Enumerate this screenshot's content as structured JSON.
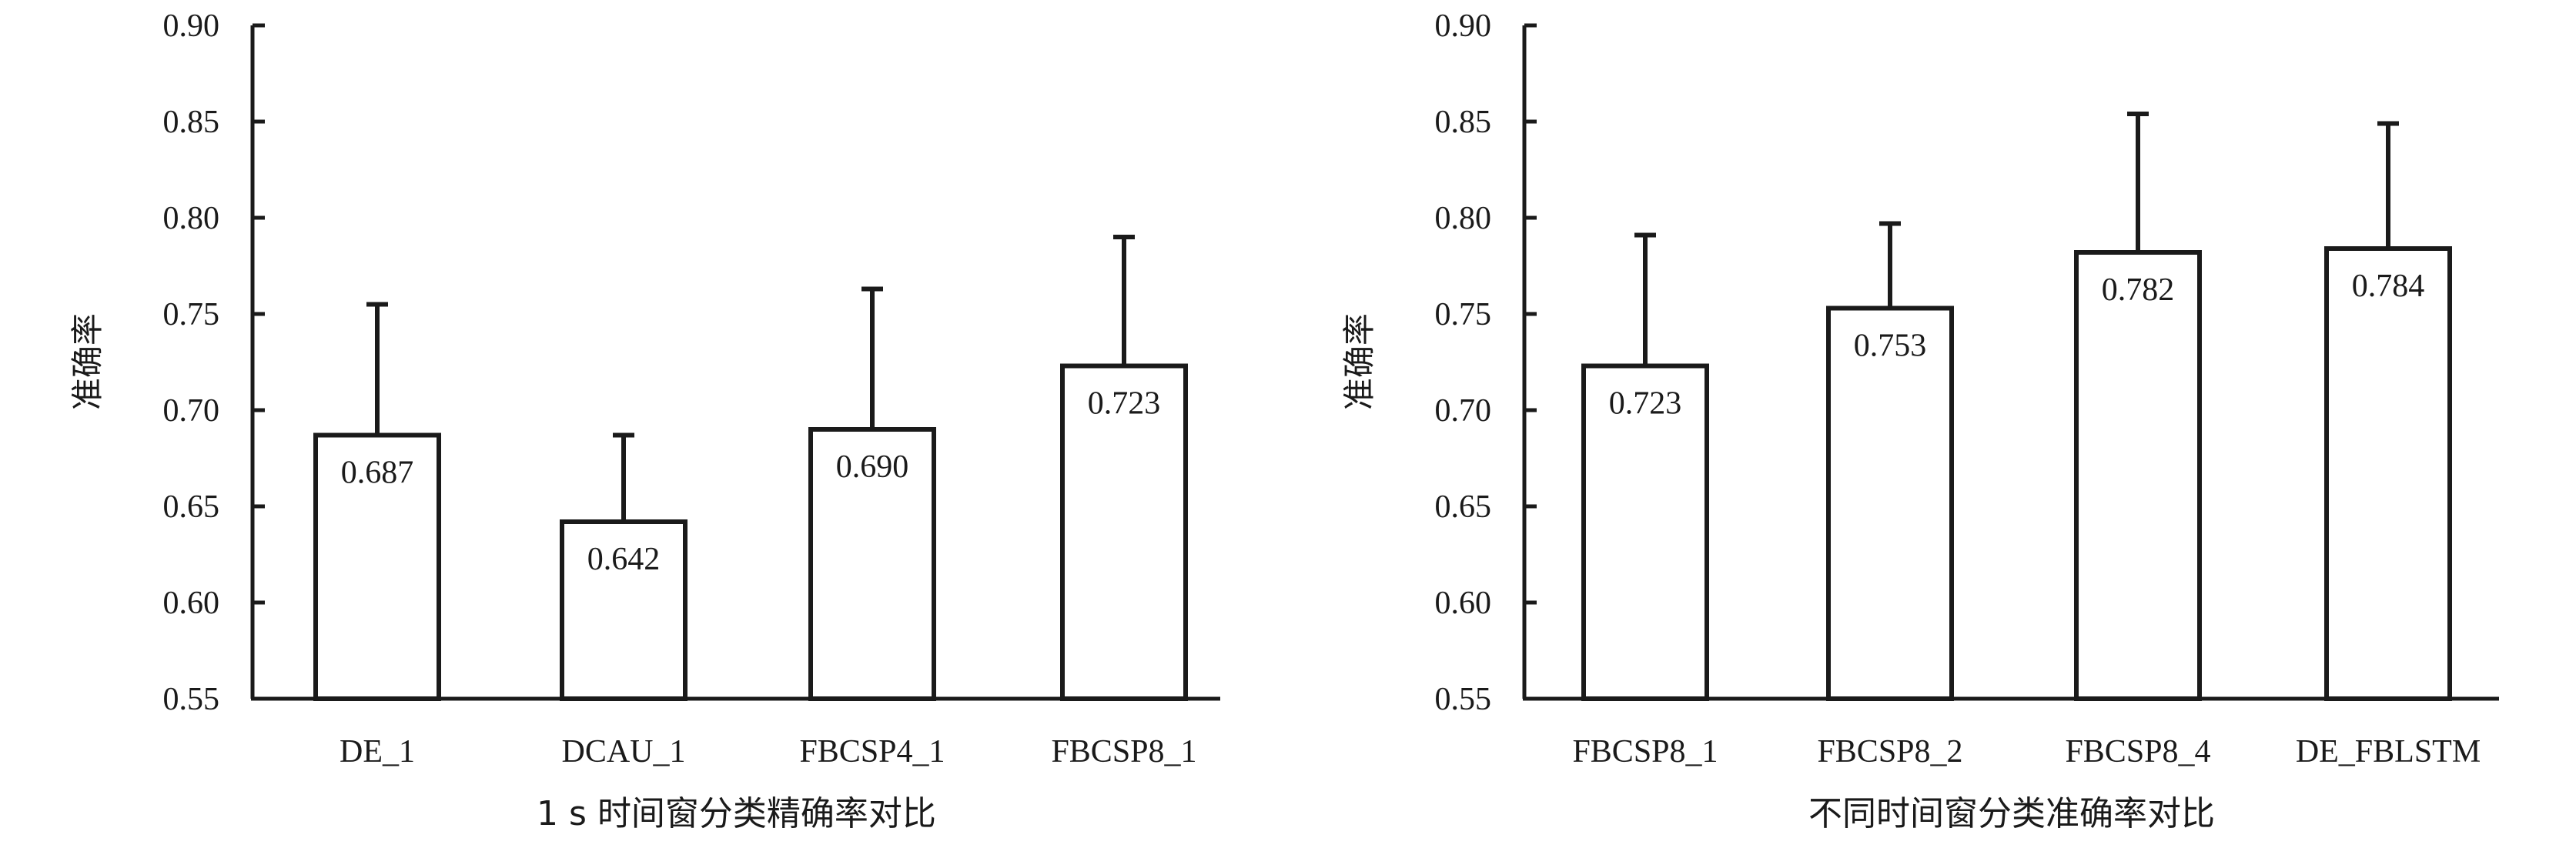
{
  "colors": {
    "ink": "#1a1a1a",
    "bar_fill": "#ffffff"
  },
  "chart_data": [
    {
      "type": "bar",
      "title": "",
      "xlabel": "1 s 时间窗分类精确率对比",
      "ylabel": "准确率",
      "ylim": [
        0.55,
        0.9
      ],
      "yticks": [
        "0.55",
        "0.60",
        "0.65",
        "0.70",
        "0.75",
        "0.80",
        "0.85",
        "0.90"
      ],
      "categories": [
        "DE_1",
        "DCAU_1",
        "FBCSP4_1",
        "FBCSP8_1"
      ],
      "values": [
        0.687,
        0.642,
        0.69,
        0.723
      ],
      "error_top": [
        0.755,
        0.687,
        0.763,
        0.79
      ],
      "value_labels": [
        "0.687",
        "0.642",
        "0.690",
        "0.723"
      ],
      "grid": false,
      "legend": "none"
    },
    {
      "type": "bar",
      "title": "",
      "xlabel": "不同时间窗分类准确率对比",
      "ylabel": "准确率",
      "ylim": [
        0.55,
        0.9
      ],
      "yticks": [
        "0.55",
        "0.60",
        "0.65",
        "0.70",
        "0.75",
        "0.80",
        "0.85",
        "0.90"
      ],
      "categories": [
        "FBCSP8_1",
        "FBCSP8_2",
        "FBCSP8_4",
        "DE_FBLSTM"
      ],
      "values": [
        0.723,
        0.753,
        0.782,
        0.784
      ],
      "error_top": [
        0.791,
        0.797,
        0.854,
        0.849
      ],
      "value_labels": [
        "0.723",
        "0.753",
        "0.782",
        "0.784"
      ],
      "grid": false,
      "legend": "none"
    }
  ]
}
